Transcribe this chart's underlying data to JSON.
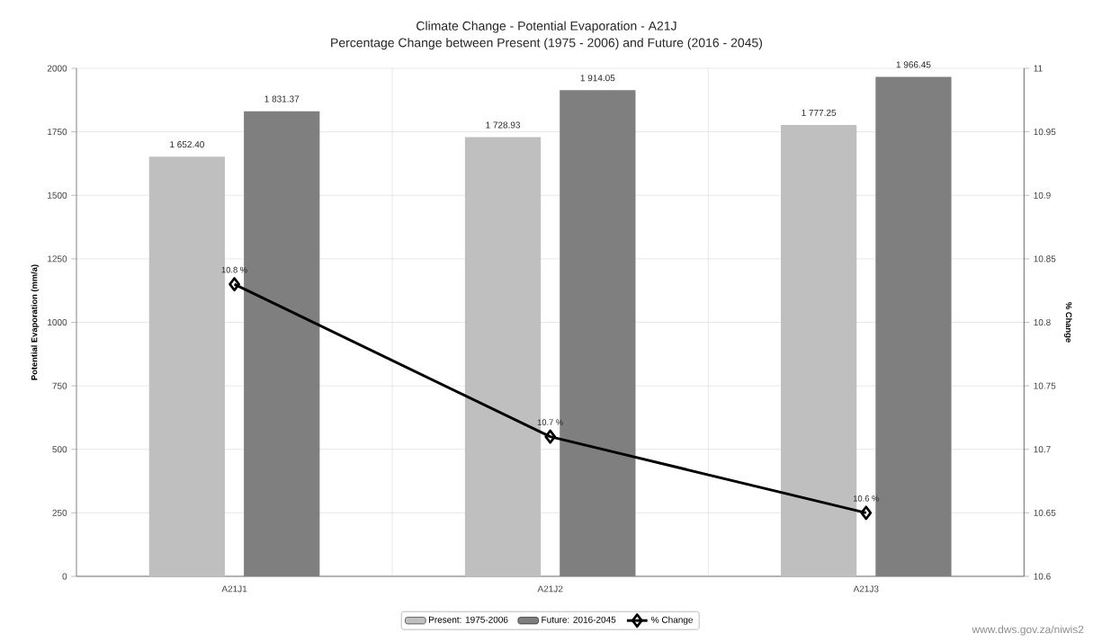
{
  "chart_data": {
    "type": "bar",
    "title": "Climate Change - Potential Evaporation - A21J",
    "subtitle": "Percentage Change between Present (1975 - 2006) and Future (2016 - 2045)",
    "ylabel": "Potential Evaporation (mm/a)",
    "y2label": "% Change",
    "categories": [
      "A21J1",
      "A21J2",
      "A21J3"
    ],
    "series": [
      {
        "name": "Present: 1975-2006",
        "color": "#bfbfbf",
        "values": [
          1652.4,
          1728.93,
          1777.25
        ],
        "value_labels": [
          "1 652.40",
          "1 728.93",
          "1 777.25"
        ]
      },
      {
        "name": "Future: 2016-2045",
        "color": "#7f7f7f",
        "values": [
          1831.37,
          1914.05,
          1966.45
        ],
        "value_labels": [
          "1 831.37",
          "1 914.05",
          "1 966.45"
        ]
      },
      {
        "name": "% Change",
        "type": "line",
        "axis": "y2",
        "color": "#000000",
        "values": [
          10.83,
          10.71,
          10.65
        ],
        "value_labels": [
          "10.8 %",
          "10.7 %",
          "10.6 %"
        ]
      }
    ],
    "ylim": [
      0,
      2000
    ],
    "yticks": [
      0,
      250,
      500,
      750,
      1000,
      1250,
      1500,
      1750,
      2000
    ],
    "y2lim": [
      10.6,
      11
    ],
    "y2ticks": [
      10.6,
      10.65,
      10.7,
      10.75,
      10.8,
      10.85,
      10.9,
      10.95,
      11
    ],
    "grid": true,
    "legend": "bottom",
    "marker": "diamond",
    "annotations": [
      "www.dws.gov.za/niwis2"
    ]
  }
}
